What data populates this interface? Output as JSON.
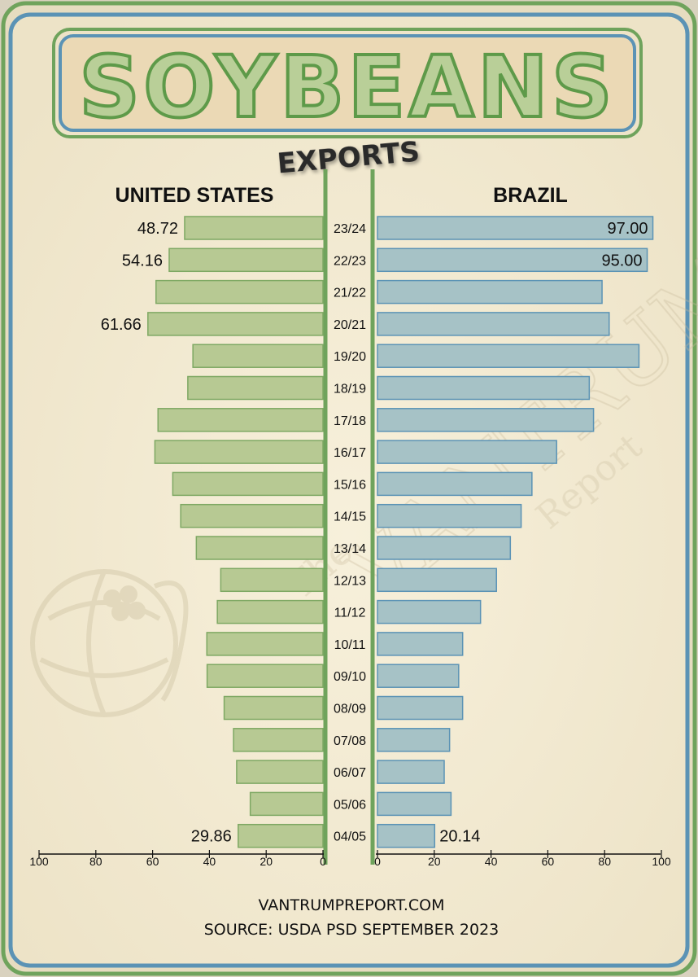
{
  "title": "SOYBEANS",
  "subtitle": "EXPORTS",
  "footer": {
    "website": "VANTRUMPREPORT.COM",
    "source": "SOURCE: USDA PSD SEPTEMBER 2023"
  },
  "watermark": {
    "the": "The",
    "name": "VANTRUMP",
    "report": "Report"
  },
  "colors": {
    "background": "#f3ebd3",
    "frame_green": "#6fa35c",
    "frame_blue": "#5b93b5",
    "us_bar": "#b7c993",
    "us_bar_stroke": "#7ea863",
    "br_bar": "#a6c2c6",
    "br_bar_stroke": "#5b93b5"
  },
  "chart_data": {
    "type": "bar",
    "orientation": "horizontal-butterfly",
    "categories": [
      "23/24",
      "22/23",
      "21/22",
      "20/21",
      "19/20",
      "18/19",
      "17/18",
      "16/17",
      "15/16",
      "14/15",
      "13/14",
      "12/13",
      "11/12",
      "10/11",
      "09/10",
      "08/09",
      "07/08",
      "06/07",
      "05/06",
      "04/05"
    ],
    "series": [
      {
        "name": "UNITED STATES",
        "side": "left",
        "values": [
          48.72,
          54.16,
          58.8,
          61.66,
          45.8,
          47.6,
          58.1,
          59.2,
          52.9,
          50.1,
          44.6,
          36.0,
          37.2,
          40.9,
          40.8,
          34.8,
          31.5,
          30.4,
          25.6,
          29.86
        ],
        "labels": [
          "48.72",
          "54.16",
          "",
          "61.66",
          "",
          "",
          "",
          "",
          "",
          "",
          "",
          "",
          "",
          "",
          "",
          "",
          "",
          "",
          "",
          "29.86"
        ]
      },
      {
        "name": "BRAZIL",
        "side": "right",
        "values": [
          97.0,
          95.0,
          79.1,
          81.6,
          92.1,
          74.6,
          76.1,
          63.1,
          54.4,
          50.6,
          46.8,
          41.9,
          36.3,
          30.0,
          28.6,
          29.99,
          25.4,
          23.5,
          25.9,
          20.14
        ],
        "labels": [
          "97.00",
          "95.00",
          "",
          "",
          "",
          "",
          "",
          "",
          "",
          "",
          "",
          "",
          "",
          "",
          "",
          "",
          "",
          "",
          "",
          "20.14"
        ]
      }
    ],
    "left_axis": {
      "ticks": [
        "100",
        "80",
        "60",
        "40",
        "20",
        "0"
      ],
      "range": [
        100,
        0
      ]
    },
    "right_axis": {
      "ticks": [
        "0",
        "20",
        "40",
        "60",
        "80",
        "100"
      ],
      "range": [
        0,
        100
      ]
    },
    "grid": false,
    "legend": "none"
  }
}
